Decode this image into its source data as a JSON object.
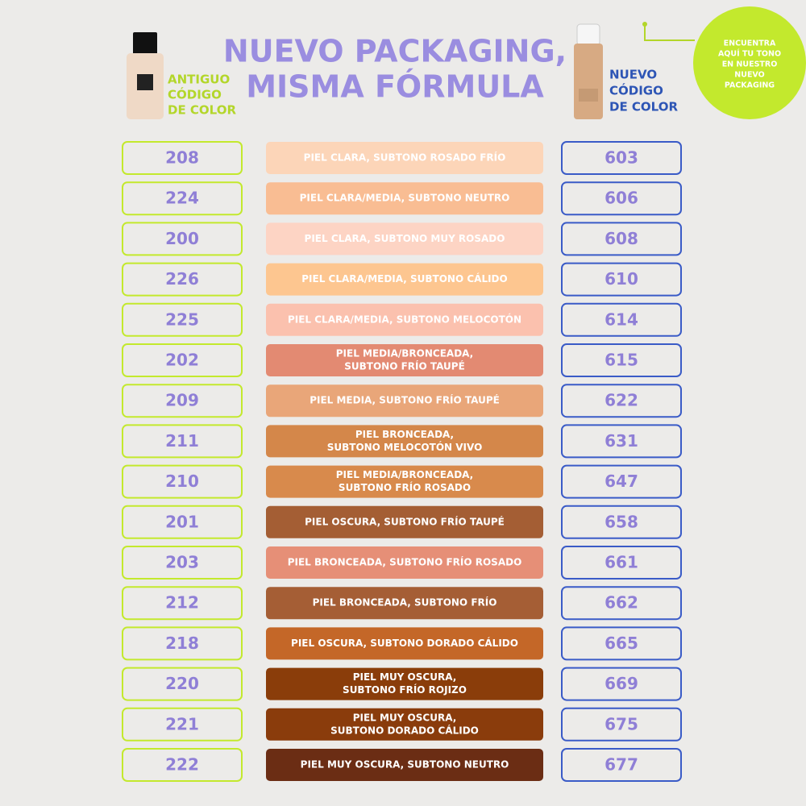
{
  "header": {
    "title_lines": [
      "NUEVO PACKAGING,",
      "MISMA FÓRMULA"
    ],
    "left_label": [
      "ANTIGUO",
      "CÓDIGO",
      "DE COLOR"
    ],
    "right_label": [
      "NUEVO",
      "CÓDIGO",
      "DE COLOR"
    ],
    "badge": [
      "ENCUENTRA",
      "AQUÍ TU TONO",
      "EN NUESTRO",
      "NUEVO",
      "PACKAGING"
    ]
  },
  "rows": [
    {
      "old": "208",
      "desc": [
        "PIEL CLARA, SUBTONO ROSADO FRÍO"
      ],
      "new": "603",
      "color": "#fcd5b8"
    },
    {
      "old": "224",
      "desc": [
        "PIEL CLARA/MEDIA, SUBTONO NEUTRO"
      ],
      "new": "606",
      "color": "#f9bd93"
    },
    {
      "old": "200",
      "desc": [
        "PIEL CLARA, SUBTONO MUY ROSADO"
      ],
      "new": "608",
      "color": "#fdd4c4"
    },
    {
      "old": "226",
      "desc": [
        "PIEL CLARA/MEDIA, SUBTONO CÁLIDO"
      ],
      "new": "610",
      "color": "#fdc690"
    },
    {
      "old": "225",
      "desc": [
        "PIEL CLARA/MEDIA, SUBTONO MELOCOTÓN"
      ],
      "new": "614",
      "color": "#fbc1ae"
    },
    {
      "old": "202",
      "desc": [
        "PIEL MEDIA/BRONCEADA,",
        "SUBTONO FRÍO TAUPÉ"
      ],
      "new": "615",
      "color": "#e38a72"
    },
    {
      "old": "209",
      "desc": [
        "PIEL MEDIA, SUBTONO FRÍO TAUPÉ"
      ],
      "new": "622",
      "color": "#e9a679"
    },
    {
      "old": "211",
      "desc": [
        "PIEL BRONCEADA,",
        "SUBTONO MELOCOTÓN VIVO"
      ],
      "new": "631",
      "color": "#d4874a"
    },
    {
      "old": "210",
      "desc": [
        "PIEL MEDIA/BRONCEADA,",
        "SUBTONO FRÍO ROSADO"
      ],
      "new": "647",
      "color": "#d88a4c"
    },
    {
      "old": "201",
      "desc": [
        "PIEL OSCURA, SUBTONO FRÍO TAUPÉ"
      ],
      "new": "658",
      "color": "#a45e34"
    },
    {
      "old": "203",
      "desc": [
        "PIEL BRONCEADA, SUBTONO FRÍO ROSADO"
      ],
      "new": "661",
      "color": "#e68f77"
    },
    {
      "old": "212",
      "desc": [
        "PIEL BRONCEADA, SUBTONO FRÍO"
      ],
      "new": "662",
      "color": "#a55e35"
    },
    {
      "old": "218",
      "desc": [
        "PIEL OSCURA, SUBTONO DORADO CÁLIDO"
      ],
      "new": "665",
      "color": "#c46728"
    },
    {
      "old": "220",
      "desc": [
        "PIEL MUY OSCURA,",
        "SUBTONO FRÍO ROJIZO"
      ],
      "new": "669",
      "color": "#8a3d0a"
    },
    {
      "old": "221",
      "desc": [
        "PIEL MUY OSCURA,",
        "SUBTONO DORADO CÁLIDO"
      ],
      "new": "675",
      "color": "#8a3c0c"
    },
    {
      "old": "222",
      "desc": [
        "PIEL MUY OSCURA, SUBTONO NEUTRO"
      ],
      "new": "677",
      "color": "#6b2d14"
    }
  ]
}
